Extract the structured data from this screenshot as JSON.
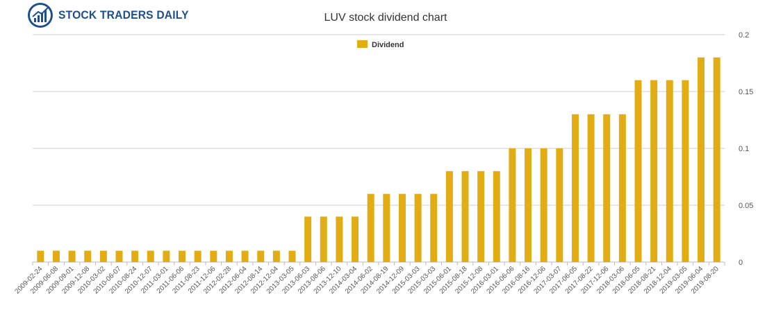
{
  "logo": {
    "text": "STOCK TRADERS DAILY",
    "icon": "bull-chart-logo-icon",
    "brand_color": "#1d4f8c"
  },
  "chart_data": {
    "type": "bar",
    "title": "LUV stock dividend chart",
    "xlabel": "",
    "ylabel": "",
    "ylim": [
      0,
      0.2
    ],
    "yticks": [
      0,
      0.05,
      0.1,
      0.15,
      0.2
    ],
    "ytick_labels": [
      "0",
      "0.05",
      "0.1",
      "0.15",
      "0.2"
    ],
    "grid": true,
    "legend_position": "top-center",
    "bar_color": "#e2ad14",
    "categories": [
      "2009-02-24",
      "2009-06-08",
      "2009-09-01",
      "2009-12-08",
      "2010-03-02",
      "2010-06-07",
      "2010-08-24",
      "2010-12-07",
      "2011-03-01",
      "2011-06-06",
      "2011-08-23",
      "2011-12-06",
      "2012-02-28",
      "2012-06-04",
      "2012-08-14",
      "2012-12-04",
      "2013-03-05",
      "2013-06-03",
      "2013-08-06",
      "2013-12-10",
      "2014-03-04",
      "2014-06-02",
      "2014-08-19",
      "2014-12-09",
      "2015-03-03",
      "2015-03-03",
      "2015-06-01",
      "2015-08-18",
      "2015-12-08",
      "2016-03-01",
      "2016-06-06",
      "2016-08-16",
      "2016-12-06",
      "2017-03-07",
      "2017-06-05",
      "2017-08-22",
      "2017-12-06",
      "2018-03-06",
      "2018-06-05",
      "2018-08-21",
      "2018-12-04",
      "2019-03-05",
      "2019-06-04",
      "2019-08-20"
    ],
    "series": [
      {
        "name": "Dividend",
        "values": [
          0.01,
          0.01,
          0.01,
          0.01,
          0.01,
          0.01,
          0.01,
          0.01,
          0.01,
          0.01,
          0.01,
          0.01,
          0.01,
          0.01,
          0.01,
          0.01,
          0.01,
          0.04,
          0.04,
          0.04,
          0.04,
          0.06,
          0.06,
          0.06,
          0.06,
          0.06,
          0.08,
          0.08,
          0.08,
          0.08,
          0.1,
          0.1,
          0.1,
          0.1,
          0.13,
          0.13,
          0.13,
          0.13,
          0.16,
          0.16,
          0.16,
          0.16,
          0.18,
          0.18
        ]
      }
    ]
  }
}
